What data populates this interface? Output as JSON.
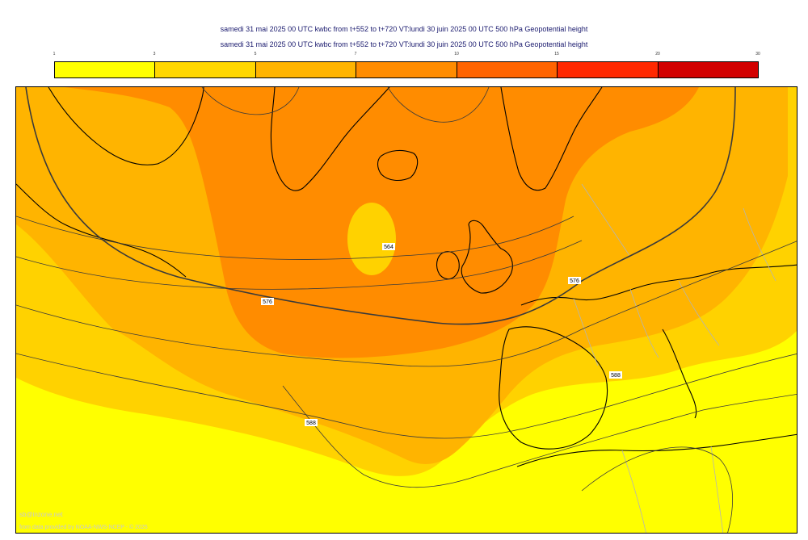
{
  "header": {
    "line1": "samedi 31 mai 2025 00 UTC kwbc from t+552 to t+720 VT:lundi 30 juin 2025 00 UTC 500 hPa  Geopotential height",
    "line2": "samedi 31 mai 2025 00 UTC kwbc from t+552 to t+720 VT:lundi 30 juin 2025 00 UTC 500 hPa  Geopotential height"
  },
  "legend": {
    "ticks": [
      "1",
      "3",
      "5",
      "7",
      "10",
      "15",
      "20",
      "30"
    ],
    "colors": [
      "#ffff00",
      "#ffd700",
      "#ffb400",
      "#ff8c00",
      "#ff6400",
      "#ff2800",
      "#d20000"
    ]
  },
  "map": {
    "palette": {
      "c1": "#ffff00",
      "c2": "#ffd200",
      "c3": "#ffb400",
      "c4": "#ff8c00",
      "land": "#000000",
      "border": "#b4b4b4",
      "isoline": "#3a3a3a"
    },
    "contour_labels": [
      "564",
      "576",
      "576",
      "588",
      "588"
    ]
  },
  "credits": {
    "site": "sb@inzone.net",
    "source": "from data provided by NOAA-NWS-NCEP - © 2025"
  }
}
